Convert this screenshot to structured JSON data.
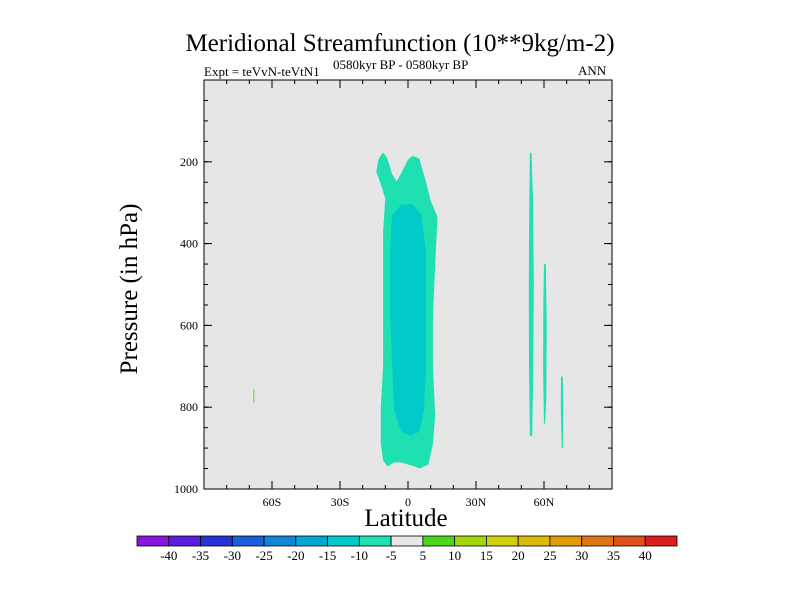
{
  "header": {
    "title": "Meridional Streamfunction (10**9kg/m-2)",
    "left_string": "Expt = teVvN-teVtN1",
    "center_string": "0580kyr BP - 0580kyr BP",
    "right_string": "ANN"
  },
  "chart_data": {
    "type": "heatmap",
    "title": "Meridional Streamfunction (10**9kg/m-2)",
    "xlabel": "Latitude",
    "ylabel": "Pressure (in hPa)",
    "xlim": [
      -90,
      90
    ],
    "ylim": [
      1000,
      0
    ],
    "x_ticks": [
      {
        "value": -60,
        "label": "60S"
      },
      {
        "value": -30,
        "label": "30S"
      },
      {
        "value": 0,
        "label": "0"
      },
      {
        "value": 30,
        "label": "30N"
      },
      {
        "value": 60,
        "label": "60N"
      }
    ],
    "y_ticks": [
      {
        "value": 200,
        "label": "200"
      },
      {
        "value": 400,
        "label": "400"
      },
      {
        "value": 600,
        "label": "600"
      },
      {
        "value": 800,
        "label": "800"
      },
      {
        "value": 1000,
        "label": "1000"
      }
    ],
    "background_color": "#e6e6e6",
    "colorbar": {
      "levels": [
        "-40",
        "-35",
        "-30",
        "-25",
        "-20",
        "-15",
        "-10",
        "-5",
        "5",
        "10",
        "15",
        "20",
        "25",
        "30",
        "35",
        "40"
      ],
      "colors": [
        "#8a16de",
        "#5a1fe0",
        "#2633d6",
        "#1a5ed9",
        "#0d86d6",
        "#00a8d2",
        "#00cbc9",
        "#1fe0b0",
        "#e6e6e6",
        "#4ad61a",
        "#a3d60b",
        "#cfd10a",
        "#ddb90a",
        "#e09a0a",
        "#e07514",
        "#e0501a",
        "#d81e1e"
      ]
    },
    "regions": [
      {
        "name": "main-outer",
        "value_range": "-10 to -5",
        "color": "#1fe0b0",
        "polygon": [
          [
            -13,
            194
          ],
          [
            -11,
            177
          ],
          [
            -9,
            193
          ],
          [
            -7,
            230
          ],
          [
            -5,
            248
          ],
          [
            -3,
            228
          ],
          [
            0,
            195
          ],
          [
            2,
            185
          ],
          [
            5,
            192
          ],
          [
            8,
            250
          ],
          [
            10,
            295
          ],
          [
            13,
            335
          ],
          [
            12,
            450
          ],
          [
            11,
            580
          ],
          [
            11,
            700
          ],
          [
            12,
            820
          ],
          [
            11,
            890
          ],
          [
            9,
            940
          ],
          [
            5,
            950
          ],
          [
            3,
            945
          ],
          [
            0,
            940
          ],
          [
            -3,
            935
          ],
          [
            -6,
            935
          ],
          [
            -9,
            945
          ],
          [
            -11,
            930
          ],
          [
            -12,
            890
          ],
          [
            -12,
            800
          ],
          [
            -11,
            700
          ],
          [
            -11,
            580
          ],
          [
            -11,
            470
          ],
          [
            -11,
            370
          ],
          [
            -10,
            290
          ],
          [
            -12,
            255
          ],
          [
            -14,
            225
          ]
        ]
      },
      {
        "name": "main-inner",
        "value_range": "-15 to -10",
        "color": "#00cbc9",
        "polygon": [
          [
            -7,
            330
          ],
          [
            -3,
            305
          ],
          [
            2,
            303
          ],
          [
            6,
            330
          ],
          [
            8,
            420
          ],
          [
            8,
            560
          ],
          [
            8,
            700
          ],
          [
            7,
            810
          ],
          [
            5,
            860
          ],
          [
            1,
            870
          ],
          [
            -3,
            860
          ],
          [
            -6,
            810
          ],
          [
            -7,
            700
          ],
          [
            -8,
            560
          ],
          [
            -8,
            420
          ]
        ]
      },
      {
        "name": "band-1",
        "value_range": "-10 to -5",
        "color": "#1fe0b0",
        "polygon": [
          [
            53.8,
            178
          ],
          [
            54.5,
            178
          ],
          [
            55.2,
            300
          ],
          [
            55.5,
            500
          ],
          [
            55.3,
            700
          ],
          [
            54.8,
            870
          ],
          [
            53.8,
            870
          ],
          [
            53.4,
            700
          ],
          [
            53.3,
            500
          ],
          [
            53.5,
            300
          ]
        ]
      },
      {
        "name": "band-2",
        "value_range": "-10 to -5",
        "color": "#1fe0b0",
        "polygon": [
          [
            60.0,
            450
          ],
          [
            60.8,
            450
          ],
          [
            61.2,
            600
          ],
          [
            61.0,
            780
          ],
          [
            60.5,
            840
          ],
          [
            60.0,
            840
          ],
          [
            59.6,
            700
          ],
          [
            59.7,
            560
          ]
        ]
      },
      {
        "name": "band-3",
        "value_range": "-10 to -5",
        "color": "#1fe0b0",
        "polygon": [
          [
            67.5,
            725
          ],
          [
            68.3,
            725
          ],
          [
            68.5,
            800
          ],
          [
            68.3,
            900
          ],
          [
            67.8,
            900
          ],
          [
            67.4,
            800
          ]
        ]
      },
      {
        "name": "small-positive",
        "value_range": "5 to 10",
        "color": "#4ad61a",
        "polygon": [
          [
            -68.2,
            755
          ],
          [
            -67.8,
            755
          ],
          [
            -67.8,
            790
          ],
          [
            -68.2,
            790
          ]
        ]
      }
    ]
  }
}
